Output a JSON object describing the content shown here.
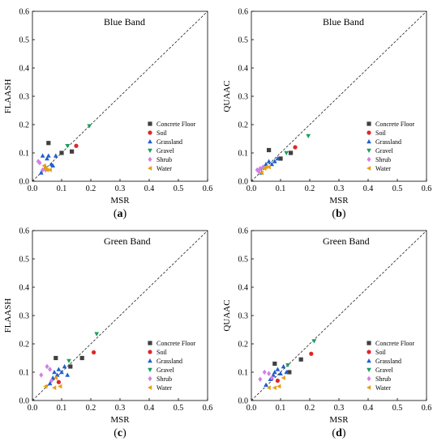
{
  "chart_data": [
    {
      "type": "scatter",
      "panel": "a",
      "caption": "a",
      "annotation": "Blue Band",
      "xlabel": "MSR",
      "ylabel": "FLAASH",
      "xlim": [
        0,
        0.6
      ],
      "ylim": [
        0,
        0.6
      ],
      "xticks": [
        "0.0",
        "0.1",
        "0.2",
        "0.3",
        "0.4",
        "0.5",
        "0.6"
      ],
      "yticks": [
        "0.0",
        "0.1",
        "0.2",
        "0.3",
        "0.4",
        "0.5",
        "0.6"
      ],
      "identity_line": true,
      "legend_placement": "bottom-right",
      "series": [
        {
          "name": "Concrete Floor",
          "marker": "square",
          "color": "#404040",
          "points": [
            [
              0.055,
              0.135
            ],
            [
              0.1,
              0.1
            ],
            [
              0.135,
              0.105
            ]
          ]
        },
        {
          "name": "Soil",
          "marker": "circle",
          "color": "#e0262a",
          "points": [
            [
              0.15,
              0.125
            ]
          ]
        },
        {
          "name": "Grassland",
          "marker": "triangle-up",
          "color": "#1f5fcf",
          "points": [
            [
              0.03,
              0.03
            ],
            [
              0.035,
              0.09
            ],
            [
              0.045,
              0.05
            ],
            [
              0.05,
              0.08
            ],
            [
              0.055,
              0.09
            ],
            [
              0.065,
              0.06
            ],
            [
              0.07,
              0.055
            ],
            [
              0.08,
              0.09
            ]
          ]
        },
        {
          "name": "Gravel",
          "marker": "triangle-down",
          "color": "#1a9e5c",
          "points": [
            [
              0.195,
              0.195
            ],
            [
              0.12,
              0.125
            ]
          ]
        },
        {
          "name": "Shrub",
          "marker": "diamond",
          "color": "#d080e8",
          "points": [
            [
              0.02,
              0.07
            ],
            [
              0.025,
              0.065
            ],
            [
              0.035,
              0.04
            ],
            [
              0.045,
              0.04
            ]
          ]
        },
        {
          "name": "Water",
          "marker": "triangle-left",
          "color": "#e8a010",
          "points": [
            [
              0.04,
              0.055
            ],
            [
              0.045,
              0.045
            ],
            [
              0.05,
              0.04
            ],
            [
              0.06,
              0.04
            ]
          ]
        }
      ]
    },
    {
      "type": "scatter",
      "panel": "b",
      "caption": "b",
      "annotation": "Blue Band",
      "xlabel": "MSR",
      "ylabel": "QUAAC",
      "xlim": [
        0,
        0.6
      ],
      "ylim": [
        0,
        0.6
      ],
      "xticks": [
        "0.0",
        "0.1",
        "0.2",
        "0.3",
        "0.4",
        "0.5",
        "0.6"
      ],
      "yticks": [
        "0.0",
        "0.1",
        "0.2",
        "0.3",
        "0.4",
        "0.5",
        "0.6"
      ],
      "identity_line": true,
      "legend_placement": "bottom-right",
      "series": [
        {
          "name": "Concrete Floor",
          "marker": "square",
          "color": "#404040",
          "points": [
            [
              0.06,
              0.11
            ],
            [
              0.1,
              0.08
            ],
            [
              0.135,
              0.1
            ]
          ]
        },
        {
          "name": "Soil",
          "marker": "circle",
          "color": "#e0262a",
          "points": [
            [
              0.15,
              0.12
            ]
          ]
        },
        {
          "name": "Grassland",
          "marker": "triangle-up",
          "color": "#1f5fcf",
          "points": [
            [
              0.03,
              0.045
            ],
            [
              0.035,
              0.03
            ],
            [
              0.04,
              0.05
            ],
            [
              0.05,
              0.06
            ],
            [
              0.06,
              0.07
            ],
            [
              0.07,
              0.06
            ],
            [
              0.08,
              0.07
            ],
            [
              0.09,
              0.08
            ]
          ]
        },
        {
          "name": "Gravel",
          "marker": "triangle-down",
          "color": "#1a9e5c",
          "points": [
            [
              0.195,
              0.16
            ],
            [
              0.12,
              0.1
            ]
          ]
        },
        {
          "name": "Shrub",
          "marker": "diamond",
          "color": "#d080e8",
          "points": [
            [
              0.02,
              0.04
            ],
            [
              0.025,
              0.035
            ],
            [
              0.03,
              0.045
            ],
            [
              0.04,
              0.05
            ]
          ]
        },
        {
          "name": "Water",
          "marker": "triangle-left",
          "color": "#e8a010",
          "points": [
            [
              0.035,
              0.03
            ],
            [
              0.045,
              0.045
            ],
            [
              0.05,
              0.05
            ],
            [
              0.06,
              0.05
            ]
          ]
        }
      ]
    },
    {
      "type": "scatter",
      "panel": "c",
      "caption": "c",
      "annotation": "Green Band",
      "xlabel": "MSR",
      "ylabel": "FLAASH",
      "xlim": [
        0,
        0.6
      ],
      "ylim": [
        0,
        0.6
      ],
      "xticks": [
        "0.0",
        "0.1",
        "0.2",
        "0.3",
        "0.4",
        "0.5",
        "0.6"
      ],
      "yticks": [
        "0.0",
        "0.1",
        "0.2",
        "0.3",
        "0.4",
        "0.5",
        "0.6"
      ],
      "identity_line": true,
      "legend_placement": "bottom-right",
      "series": [
        {
          "name": "Concrete Floor",
          "marker": "square",
          "color": "#404040",
          "points": [
            [
              0.08,
              0.15
            ],
            [
              0.13,
              0.12
            ],
            [
              0.17,
              0.15
            ]
          ]
        },
        {
          "name": "Soil",
          "marker": "circle",
          "color": "#e0262a",
          "points": [
            [
              0.21,
              0.17
            ],
            [
              0.09,
              0.065
            ]
          ]
        },
        {
          "name": "Grassland",
          "marker": "triangle-up",
          "color": "#1f5fcf",
          "points": [
            [
              0.06,
              0.06
            ],
            [
              0.07,
              0.08
            ],
            [
              0.075,
              0.1
            ],
            [
              0.085,
              0.09
            ],
            [
              0.09,
              0.11
            ],
            [
              0.1,
              0.1
            ],
            [
              0.11,
              0.12
            ],
            [
              0.12,
              0.09
            ]
          ]
        },
        {
          "name": "Gravel",
          "marker": "triangle-down",
          "color": "#1a9e5c",
          "points": [
            [
              0.22,
              0.235
            ],
            [
              0.125,
              0.14
            ]
          ]
        },
        {
          "name": "Shrub",
          "marker": "diamond",
          "color": "#d080e8",
          "points": [
            [
              0.03,
              0.09
            ],
            [
              0.05,
              0.12
            ],
            [
              0.06,
              0.11
            ],
            [
              0.065,
              0.07
            ]
          ]
        },
        {
          "name": "Water",
          "marker": "triangle-left",
          "color": "#e8a010",
          "points": [
            [
              0.045,
              0.05
            ],
            [
              0.075,
              0.045
            ],
            [
              0.08,
              0.08
            ],
            [
              0.095,
              0.05
            ]
          ]
        }
      ]
    },
    {
      "type": "scatter",
      "panel": "d",
      "caption": "d",
      "annotation": "Green Band",
      "xlabel": "MSR",
      "ylabel": "QUAAC",
      "xlim": [
        0,
        0.6
      ],
      "ylim": [
        0,
        0.6
      ],
      "xticks": [
        "0.0",
        "0.1",
        "0.2",
        "0.3",
        "0.4",
        "0.5",
        "0.6"
      ],
      "yticks": [
        "0.0",
        "0.1",
        "0.2",
        "0.3",
        "0.4",
        "0.5",
        "0.6"
      ],
      "identity_line": true,
      "legend_placement": "bottom-right",
      "series": [
        {
          "name": "Concrete Floor",
          "marker": "square",
          "color": "#404040",
          "points": [
            [
              0.08,
              0.13
            ],
            [
              0.13,
              0.1
            ],
            [
              0.17,
              0.145
            ]
          ]
        },
        {
          "name": "Soil",
          "marker": "circle",
          "color": "#e0262a",
          "points": [
            [
              0.205,
              0.165
            ],
            [
              0.09,
              0.07
            ]
          ]
        },
        {
          "name": "Grassland",
          "marker": "triangle-up",
          "color": "#1f5fcf",
          "points": [
            [
              0.05,
              0.055
            ],
            [
              0.065,
              0.075
            ],
            [
              0.075,
              0.09
            ],
            [
              0.08,
              0.1
            ],
            [
              0.09,
              0.11
            ],
            [
              0.1,
              0.095
            ],
            [
              0.11,
              0.12
            ],
            [
              0.12,
              0.1
            ]
          ]
        },
        {
          "name": "Gravel",
          "marker": "triangle-down",
          "color": "#1a9e5c",
          "points": [
            [
              0.215,
              0.21
            ],
            [
              0.125,
              0.125
            ]
          ]
        },
        {
          "name": "Shrub",
          "marker": "diamond",
          "color": "#d080e8",
          "points": [
            [
              0.03,
              0.075
            ],
            [
              0.045,
              0.1
            ],
            [
              0.06,
              0.095
            ],
            [
              0.07,
              0.08
            ]
          ]
        },
        {
          "name": "Water",
          "marker": "triangle-left",
          "color": "#e8a010",
          "points": [
            [
              0.06,
              0.045
            ],
            [
              0.08,
              0.045
            ],
            [
              0.095,
              0.05
            ],
            [
              0.11,
              0.08
            ]
          ]
        }
      ]
    }
  ]
}
